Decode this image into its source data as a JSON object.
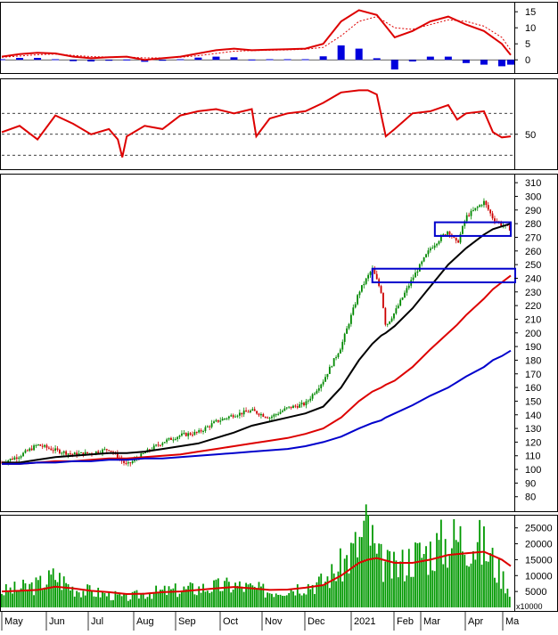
{
  "chart_data": [
    {
      "panel": "macd",
      "type": "line",
      "y_ticks": [
        "15",
        "10",
        "5",
        "0"
      ],
      "ylim": [
        -3,
        17
      ],
      "x": [
        0,
        20,
        40,
        60,
        80,
        100,
        120,
        140,
        160,
        180,
        200,
        220,
        240,
        260,
        280,
        300,
        320,
        340,
        360,
        380,
        400,
        420,
        440,
        460,
        480,
        500,
        520,
        540,
        560,
        570
      ],
      "series": [
        {
          "values": [
            1.0,
            1.8,
            2.2,
            2.0,
            1.0,
            0.5,
            0.8,
            1.0,
            0.0,
            0.5,
            1.0,
            2.0,
            3.0,
            3.5,
            3.0,
            3.2,
            3.3,
            3.5,
            5.0,
            12.0,
            15.5,
            14.0,
            7.0,
            9.0,
            12.0,
            13.5,
            11.0,
            9.0,
            5.0,
            1.5
          ]
        },
        {
          "values": [
            0.8,
            1.2,
            1.6,
            1.8,
            1.4,
            1.0,
            0.9,
            0.9,
            0.6,
            0.6,
            0.8,
            1.3,
            2.0,
            2.7,
            2.9,
            3.0,
            3.1,
            3.3,
            3.9,
            7.5,
            12.0,
            13.5,
            10.0,
            9.5,
            11.0,
            12.5,
            12.0,
            10.5,
            7.0,
            3.0
          ]
        }
      ],
      "histogram": [
        0.2,
        0.6,
        0.6,
        0.2,
        -0.4,
        -0.5,
        -0.1,
        0.1,
        -0.6,
        -0.1,
        0.2,
        0.7,
        1.0,
        0.8,
        0.1,
        0.2,
        0.2,
        0.2,
        1.1,
        4.5,
        3.5,
        0.5,
        -3.0,
        -0.5,
        1.0,
        1.0,
        -1.0,
        -1.5,
        -2.0,
        -1.5
      ]
    },
    {
      "panel": "rsi",
      "type": "line",
      "y_ticks": [
        "50"
      ],
      "ylim": [
        20,
        100
      ],
      "reference_lines": [
        30,
        50,
        70
      ],
      "x": [
        0,
        20,
        40,
        60,
        80,
        100,
        120,
        130,
        135,
        140,
        160,
        180,
        200,
        220,
        240,
        260,
        280,
        285,
        300,
        320,
        340,
        360,
        380,
        400,
        410,
        420,
        430,
        440,
        460,
        480,
        500,
        510,
        520,
        540,
        550,
        560,
        570
      ],
      "values": [
        52,
        58,
        45,
        68,
        60,
        50,
        55,
        45,
        28,
        48,
        58,
        55,
        68,
        72,
        74,
        70,
        74,
        48,
        65,
        70,
        72,
        80,
        90,
        92,
        92,
        88,
        48,
        55,
        70,
        72,
        78,
        64,
        70,
        72,
        52,
        47,
        48
      ]
    },
    {
      "panel": "price",
      "type": "candlestick",
      "y_ticks": [
        "310",
        "300",
        "290",
        "280",
        "270",
        "260",
        "250",
        "240",
        "230",
        "220",
        "210",
        "200",
        "190",
        "180",
        "170",
        "160",
        "150",
        "140",
        "130",
        "120",
        "110",
        "100",
        "90",
        "80"
      ],
      "ylim": [
        72,
        314
      ],
      "x": [
        0,
        20,
        40,
        60,
        80,
        100,
        120,
        140,
        160,
        180,
        200,
        220,
        240,
        260,
        280,
        300,
        320,
        340,
        360,
        380,
        400,
        415,
        425,
        430,
        440,
        460,
        480,
        500,
        510,
        520,
        540,
        550,
        560,
        570
      ],
      "close": [
        105,
        110,
        118,
        114,
        111,
        112,
        115,
        103,
        112,
        120,
        125,
        127,
        135,
        140,
        143,
        138,
        145,
        148,
        165,
        190,
        230,
        247,
        230,
        205,
        215,
        240,
        262,
        275,
        265,
        285,
        296,
        284,
        279,
        276
      ],
      "moving_averages": [
        {
          "color": "#000000",
          "values": [
            105,
            105,
            107,
            109,
            110,
            111,
            112,
            112,
            113,
            115,
            117,
            119,
            123,
            127,
            132,
            135,
            138,
            141,
            146,
            160,
            180,
            192,
            198,
            200,
            205,
            218,
            234,
            250,
            256,
            262,
            272,
            276,
            278,
            280
          ]
        },
        {
          "color": "#dd0000",
          "values": [
            104,
            104,
            105,
            106,
            106,
            107,
            108,
            108,
            109,
            110,
            111,
            113,
            115,
            117,
            119,
            121,
            123,
            126,
            130,
            138,
            150,
            157,
            160,
            162,
            165,
            175,
            188,
            200,
            206,
            213,
            225,
            232,
            237,
            242
          ]
        },
        {
          "color": "#0000cc",
          "values": [
            104,
            104,
            105,
            105,
            106,
            106,
            107,
            107,
            108,
            108,
            109,
            110,
            111,
            112,
            113,
            114,
            115,
            117,
            120,
            124,
            130,
            134,
            136,
            138,
            141,
            147,
            154,
            160,
            164,
            168,
            175,
            180,
            183,
            187
          ]
        }
      ],
      "zones": [
        {
          "x1": 415,
          "x2": 575,
          "y_low": 237,
          "y_high": 247
        },
        {
          "x1": 485,
          "x2": 570,
          "y_low": 271,
          "y_high": 281
        }
      ]
    },
    {
      "panel": "volume",
      "type": "bar",
      "y_ticks": [
        "25000",
        "20000",
        "15000",
        "10000",
        "5000"
      ],
      "ylim": [
        0,
        28000
      ],
      "unit_label": "x10000",
      "x": [
        0,
        20,
        40,
        60,
        80,
        100,
        120,
        140,
        160,
        180,
        200,
        220,
        240,
        260,
        280,
        300,
        320,
        340,
        360,
        380,
        400,
        410,
        420,
        440,
        460,
        480,
        500,
        520,
        540,
        560,
        570
      ],
      "values": [
        5000,
        6000,
        7000,
        10000,
        6000,
        5000,
        4000,
        3000,
        4500,
        5000,
        5500,
        6000,
        6500,
        7000,
        6000,
        5000,
        6000,
        7000,
        8000,
        13000,
        20000,
        26000,
        15000,
        12000,
        16000,
        18000,
        21000,
        22000,
        19000,
        10000,
        5000
      ],
      "moving_average": [
        5000,
        5200,
        5500,
        6500,
        6000,
        5200,
        4800,
        4200,
        4300,
        4800,
        5000,
        5500,
        6000,
        6400,
        6000,
        5500,
        5600,
        6200,
        7000,
        10000,
        14000,
        15000,
        15500,
        14000,
        14000,
        15000,
        16500,
        17000,
        17500,
        15000,
        13000
      ]
    }
  ],
  "x_axis": {
    "labels": [
      "May",
      "Jun",
      "Jul",
      "Aug",
      "Sep",
      "Oct",
      "Nov",
      "Dec",
      "2021",
      "Feb",
      "Mar",
      "Apr",
      "Ma"
    ],
    "positions": [
      0,
      50,
      97,
      148,
      195,
      245,
      292,
      340,
      392,
      440,
      470,
      520,
      562
    ]
  }
}
